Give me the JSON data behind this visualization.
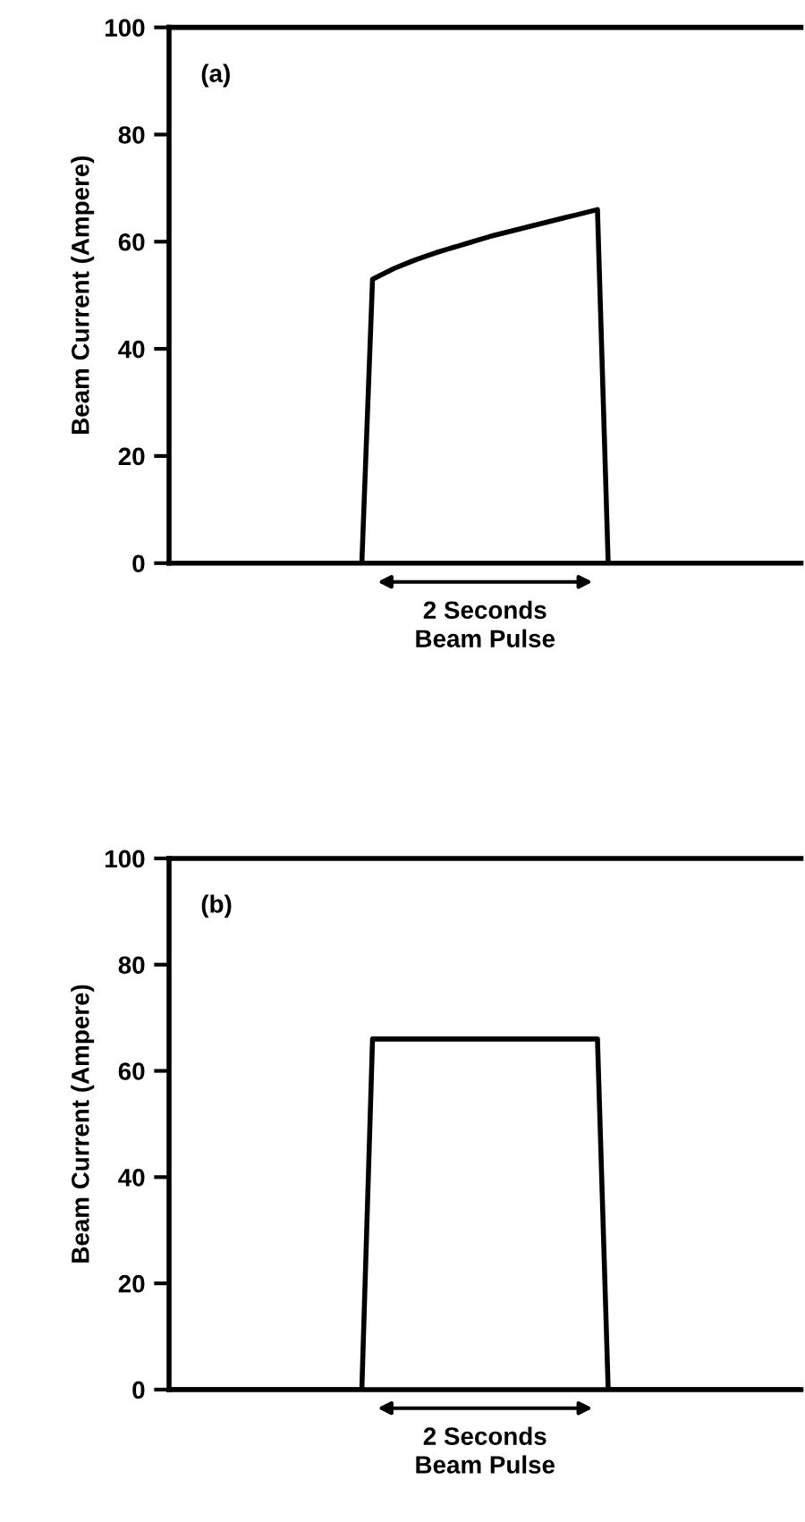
{
  "chart_data": [
    {
      "type": "line",
      "ylabel": "Beam Current (Ampere)",
      "annotations": [
        "(a)",
        "2 Seconds\nBeam Pulse"
      ],
      "categories": [
        null,
        null,
        null,
        null,
        null,
        null,
        null,
        null,
        null,
        null,
        null,
        null,
        null,
        null,
        null,
        null,
        null,
        null,
        null,
        null,
        null,
        null,
        null,
        null,
        null,
        null,
        null,
        null,
        null,
        null,
        null,
        null,
        null,
        null,
        null,
        null,
        null,
        null,
        null,
        null,
        null,
        null,
        null,
        null,
        null,
        null,
        null,
        null,
        null,
        null,
        null,
        null,
        null,
        null,
        null,
        null,
        null,
        null,
        null,
        null
      ],
      "series": [
        {
          "color": "#000000",
          "values": [
            0,
            0,
            0,
            0,
            0,
            0,
            0,
            0,
            0,
            0,
            0,
            0,
            0,
            0,
            0,
            0,
            0,
            0,
            0,
            53,
            54,
            55,
            55.8,
            56.6,
            57.3,
            58,
            58.6,
            59.2,
            59.8,
            60.4,
            61,
            61.5,
            62,
            62.5,
            63,
            63.5,
            64,
            64.5,
            65,
            65.5,
            66,
            0,
            0,
            0,
            0,
            0,
            0,
            0,
            0,
            0,
            0,
            0,
            0,
            0,
            0,
            0,
            0,
            0,
            0,
            0
          ]
        }
      ],
      "ylim": [
        0,
        100
      ],
      "yticks": [
        0,
        20,
        40,
        60,
        80,
        100
      ],
      "tick_labels": "y",
      "grid": false,
      "legend": false
    },
    {
      "type": "line",
      "ylabel": "Beam Current (Ampere)",
      "annotations": [
        "(b)",
        "2 Seconds\nBeam Pulse"
      ],
      "categories": [
        null,
        null,
        null,
        null,
        null,
        null,
        null,
        null,
        null,
        null,
        null,
        null,
        null,
        null,
        null,
        null,
        null,
        null,
        null,
        null,
        null,
        null,
        null,
        null,
        null,
        null,
        null,
        null,
        null,
        null,
        null,
        null,
        null,
        null,
        null,
        null,
        null,
        null,
        null,
        null,
        null,
        null,
        null,
        null,
        null,
        null,
        null,
        null,
        null,
        null,
        null,
        null,
        null,
        null,
        null,
        null,
        null,
        null,
        null,
        null
      ],
      "series": [
        {
          "color": "#000000",
          "values": [
            0,
            0,
            0,
            0,
            0,
            0,
            0,
            0,
            0,
            0,
            0,
            0,
            0,
            0,
            0,
            0,
            0,
            0,
            0,
            66,
            66,
            66,
            66,
            66,
            66,
            66,
            66,
            66,
            66,
            66,
            66,
            66,
            66,
            66,
            66,
            66,
            66,
            66,
            66,
            66,
            66,
            0,
            0,
            0,
            0,
            0,
            0,
            0,
            0,
            0,
            0,
            0,
            0,
            0,
            0,
            0,
            0,
            0,
            0,
            0
          ]
        }
      ],
      "ylim": [
        0,
        100
      ],
      "yticks": [
        0,
        20,
        40,
        60,
        80,
        100
      ],
      "tick_labels": "y",
      "grid": false,
      "legend": false
    }
  ]
}
